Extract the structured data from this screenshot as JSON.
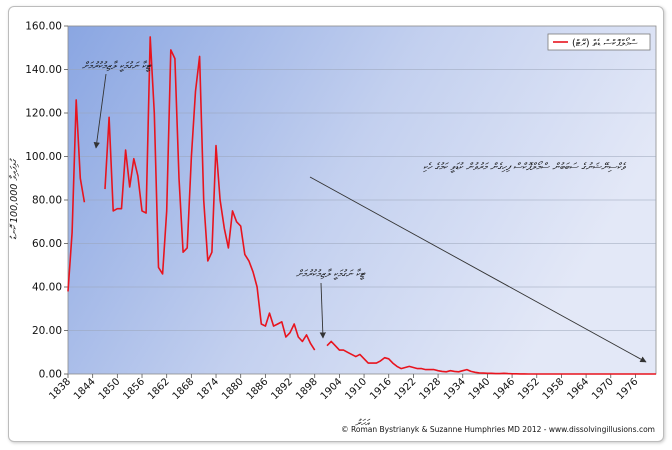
{
  "chart_data": {
    "type": "line",
    "title": "",
    "ylabel": "ގުޅިފައިވާ 100,000 ކޮނޑު",
    "xlabel": "އަހަރު",
    "ylim": [
      0,
      160
    ],
    "xlim": [
      1838,
      1981
    ],
    "yticks": [
      "0.00",
      "20.00",
      "40.00",
      "60.00",
      "80.00",
      "100.00",
      "120.00",
      "140.00",
      "160.00"
    ],
    "xticks": [
      "1838",
      "1844",
      "1850",
      "1856",
      "1862",
      "1868",
      "1874",
      "1880",
      "1886",
      "1892",
      "1898",
      "1904",
      "1910",
      "1916",
      "1922",
      "1928",
      "1934",
      "1940",
      "1946",
      "1952",
      "1958",
      "1964",
      "1970",
      "1976"
    ],
    "grid": true,
    "legend_position": "top-right",
    "series": [
      {
        "name": "ސްމޯލްޕޮކްސް ޑެތް (ރޭޓް)",
        "color": "#e8141e",
        "segments": [
          [
            [
              1838,
              38
            ],
            [
              1839,
              65
            ],
            [
              1840,
              126
            ],
            [
              1841,
              90
            ],
            [
              1842,
              79
            ]
          ],
          [
            [
              1847,
              85
            ],
            [
              1848,
              118
            ],
            [
              1849,
              75
            ],
            [
              1850,
              76
            ],
            [
              1851,
              76
            ],
            [
              1852,
              103
            ],
            [
              1853,
              86
            ],
            [
              1854,
              99
            ],
            [
              1855,
              91
            ],
            [
              1856,
              75
            ],
            [
              1857,
              74
            ],
            [
              1858,
              155
            ],
            [
              1859,
              120
            ],
            [
              1860,
              49
            ],
            [
              1861,
              46
            ],
            [
              1862,
              75
            ],
            [
              1863,
              149
            ],
            [
              1864,
              145
            ],
            [
              1865,
              90
            ],
            [
              1866,
              56
            ],
            [
              1867,
              58
            ],
            [
              1868,
              100
            ],
            [
              1869,
              130
            ],
            [
              1870,
              146
            ],
            [
              1871,
              80
            ],
            [
              1872,
              52
            ],
            [
              1873,
              56
            ],
            [
              1874,
              105
            ],
            [
              1875,
              80
            ],
            [
              1876,
              67
            ],
            [
              1877,
              58
            ],
            [
              1878,
              75
            ],
            [
              1879,
              70
            ],
            [
              1880,
              68
            ],
            [
              1881,
              55
            ],
            [
              1882,
              52
            ],
            [
              1883,
              47
            ],
            [
              1884,
              40
            ],
            [
              1885,
              23
            ],
            [
              1886,
              22
            ],
            [
              1887,
              28
            ],
            [
              1888,
              22
            ],
            [
              1889,
              23
            ],
            [
              1890,
              24
            ],
            [
              1891,
              17
            ],
            [
              1892,
              19
            ],
            [
              1893,
              23
            ],
            [
              1894,
              17
            ],
            [
              1895,
              15
            ],
            [
              1896,
              18
            ],
            [
              1897,
              14
            ],
            [
              1898,
              11
            ]
          ],
          [
            [
              1901,
              13
            ],
            [
              1902,
              15
            ],
            [
              1903,
              13
            ],
            [
              1904,
              11
            ],
            [
              1905,
              11
            ],
            [
              1906,
              10
            ],
            [
              1907,
              9
            ],
            [
              1908,
              8
            ],
            [
              1909,
              9
            ],
            [
              1910,
              7
            ],
            [
              1911,
              5
            ],
            [
              1912,
              5
            ],
            [
              1913,
              5
            ],
            [
              1914,
              6
            ],
            [
              1915,
              7.5
            ],
            [
              1916,
              7
            ],
            [
              1917,
              5
            ],
            [
              1918,
              3.5
            ],
            [
              1919,
              2.5
            ],
            [
              1920,
              3
            ],
            [
              1921,
              3.5
            ],
            [
              1922,
              3
            ],
            [
              1923,
              2.5
            ],
            [
              1924,
              2.5
            ],
            [
              1925,
              2
            ],
            [
              1926,
              2
            ],
            [
              1927,
              2
            ],
            [
              1928,
              1.5
            ],
            [
              1929,
              1.2
            ],
            [
              1930,
              1
            ],
            [
              1931,
              1.5
            ],
            [
              1932,
              1.2
            ],
            [
              1933,
              1
            ],
            [
              1934,
              1.5
            ],
            [
              1935,
              2
            ],
            [
              1936,
              1.2
            ],
            [
              1937,
              0.8
            ],
            [
              1938,
              0.5
            ],
            [
              1939,
              0.4
            ],
            [
              1940,
              0.3
            ],
            [
              1941,
              0.3
            ],
            [
              1942,
              0.2
            ],
            [
              1943,
              0.2
            ],
            [
              1944,
              0.3
            ],
            [
              1945,
              0.2
            ],
            [
              1946,
              0.1
            ],
            [
              1947,
              0.1
            ],
            [
              1948,
              0.05
            ],
            [
              1949,
              0.05
            ],
            [
              1950,
              0.02
            ],
            [
              1951,
              0
            ],
            [
              1952,
              0
            ],
            [
              1953,
              0
            ],
            [
              1954,
              0
            ],
            [
              1955,
              0
            ],
            [
              1956,
              0
            ],
            [
              1957,
              0
            ],
            [
              1958,
              0
            ],
            [
              1959,
              0
            ],
            [
              1960,
              0
            ],
            [
              1961,
              0
            ],
            [
              1962,
              0
            ],
            [
              1963,
              0
            ],
            [
              1964,
              0
            ],
            [
              1965,
              0
            ],
            [
              1966,
              0
            ],
            [
              1967,
              0
            ],
            [
              1968,
              0
            ],
            [
              1969,
              0
            ],
            [
              1970,
              0
            ],
            [
              1971,
              0
            ],
            [
              1972,
              0
            ],
            [
              1973,
              0
            ],
            [
              1974,
              0
            ],
            [
              1975,
              0
            ],
            [
              1976,
              0
            ],
            [
              1977,
              0
            ],
            [
              1978,
              0
            ],
            [
              1979,
              0
            ],
            [
              1980,
              0
            ],
            [
              1981,
              0
            ]
          ]
        ]
      }
    ],
    "annotations": [
      {
        "text": "ޓީކާ ނަގުމަކީ ލާޒިމުކުރުމަށް"
      },
      {
        "text": "ޓީކާ ނަގުމަކީ ލާޒިމުކުރުމަށް"
      },
      {
        "text": "ވެކްސިނޭޝަނުގެ ސަބަބުން ސްމޯލްޕޮކްސް ފިހިގެން މަރުވުން ކުޑަވީ ކަމުގެ ހެކި"
      }
    ],
    "credit": "© Roman Bystrianyk & Suzanne Humphries MD 2012 - www.dissolvingillusions.com"
  }
}
